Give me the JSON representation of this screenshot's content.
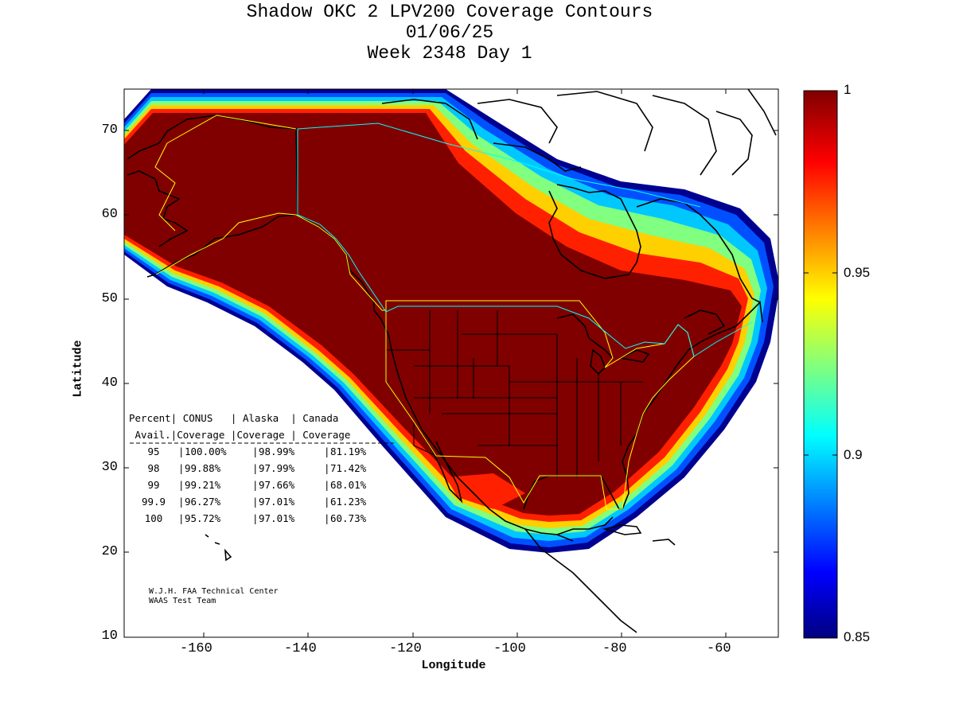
{
  "title": {
    "line1": "Shadow OKC 2 LPV200 Coverage Contours",
    "line2": "01/06/25",
    "line3": "Week 2348 Day 1"
  },
  "axes": {
    "xlabel": "Longitude",
    "ylabel": "Latitude",
    "xticks": [
      "-160",
      "-140",
      "-120",
      "-100",
      "-80",
      "-60"
    ],
    "yticks": [
      "70",
      "60",
      "50",
      "40",
      "30",
      "20",
      "10"
    ],
    "xlim": [
      -175,
      -50
    ],
    "ylim": [
      10,
      75
    ]
  },
  "colorbar": {
    "ticks": [
      "1",
      "0.95",
      "0.9",
      "0.85"
    ],
    "range": [
      0.85,
      1.0
    ],
    "colormap": "jet"
  },
  "table": {
    "header1": "Percent| CONUS   | Alaska  | Canada",
    "header2": " Avail.|Coverage |Coverage | Coverage",
    "rows": [
      {
        "percent": "95",
        "conus": "100.00%",
        "alaska": "98.99%",
        "canada": "81.19%"
      },
      {
        "percent": "98",
        "conus": "99.88%",
        "alaska": "97.99%",
        "canada": "71.42%"
      },
      {
        "percent": "99",
        "conus": "99.21%",
        "alaska": "97.66%",
        "canada": "68.01%"
      },
      {
        "percent": "99.9",
        "conus": "96.27%",
        "alaska": "97.01%",
        "canada": "61.23%"
      },
      {
        "percent": "100",
        "conus": "95.72%",
        "alaska": "97.01%",
        "canada": "60.73%"
      }
    ]
  },
  "credit": {
    "line1": "W.J.H. FAA Technical Center",
    "line2": "WAAS Test Team"
  },
  "colors": {
    "deep_red": "#800000",
    "red": "#ff0000",
    "yellow": "#ffff00",
    "cyan": "#00ffff",
    "blue": "#0000ff",
    "navy": "#000080"
  }
}
